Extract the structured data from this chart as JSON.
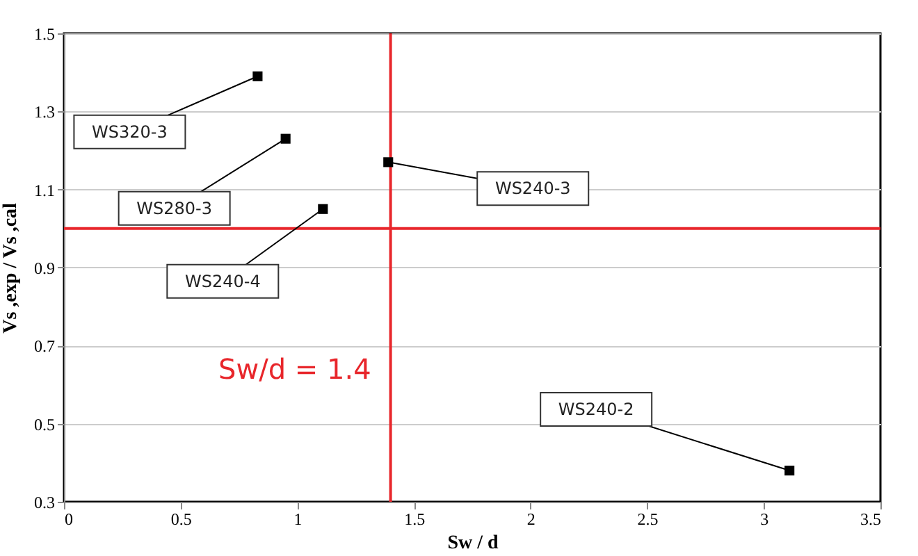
{
  "chart_data": {
    "type": "scatter",
    "xlabel": "Sw / d",
    "ylabel": "Vs ,exp / Vs ,cal",
    "x": [
      0.83,
      0.95,
      1.11,
      1.39,
      3.11
    ],
    "series": [
      {
        "color": "#000000",
        "values": [
          1.39,
          1.23,
          1.05,
          1.17,
          0.38
        ]
      }
    ],
    "marker": "square",
    "grid": "y",
    "xlim": [
      0,
      3.5
    ],
    "xticks": [
      0,
      0.5,
      1,
      1.5,
      2,
      2.5,
      3,
      3.5
    ],
    "ylim": [
      0.3,
      1.5
    ],
    "yticks": [
      0.3,
      0.5,
      0.7,
      0.9,
      1.1,
      1.3,
      1.5
    ],
    "ref_lines": [
      {
        "axis": "x",
        "value": 1.4,
        "label": "Sw/d = 1.4",
        "color": "#e8262b"
      },
      {
        "axis": "y",
        "value": 1.0,
        "color": "#e8262b"
      }
    ],
    "annotations": [
      {
        "text": "WS320-3",
        "x": 0.83,
        "y": 1.39
      },
      {
        "text": "WS280-3",
        "x": 0.95,
        "y": 1.23
      },
      {
        "text": "WS240-4",
        "x": 1.11,
        "y": 1.05
      },
      {
        "text": "WS240-3",
        "x": 1.39,
        "y": 1.17
      },
      {
        "text": "WS240-2",
        "x": 3.11,
        "y": 0.38
      }
    ]
  }
}
